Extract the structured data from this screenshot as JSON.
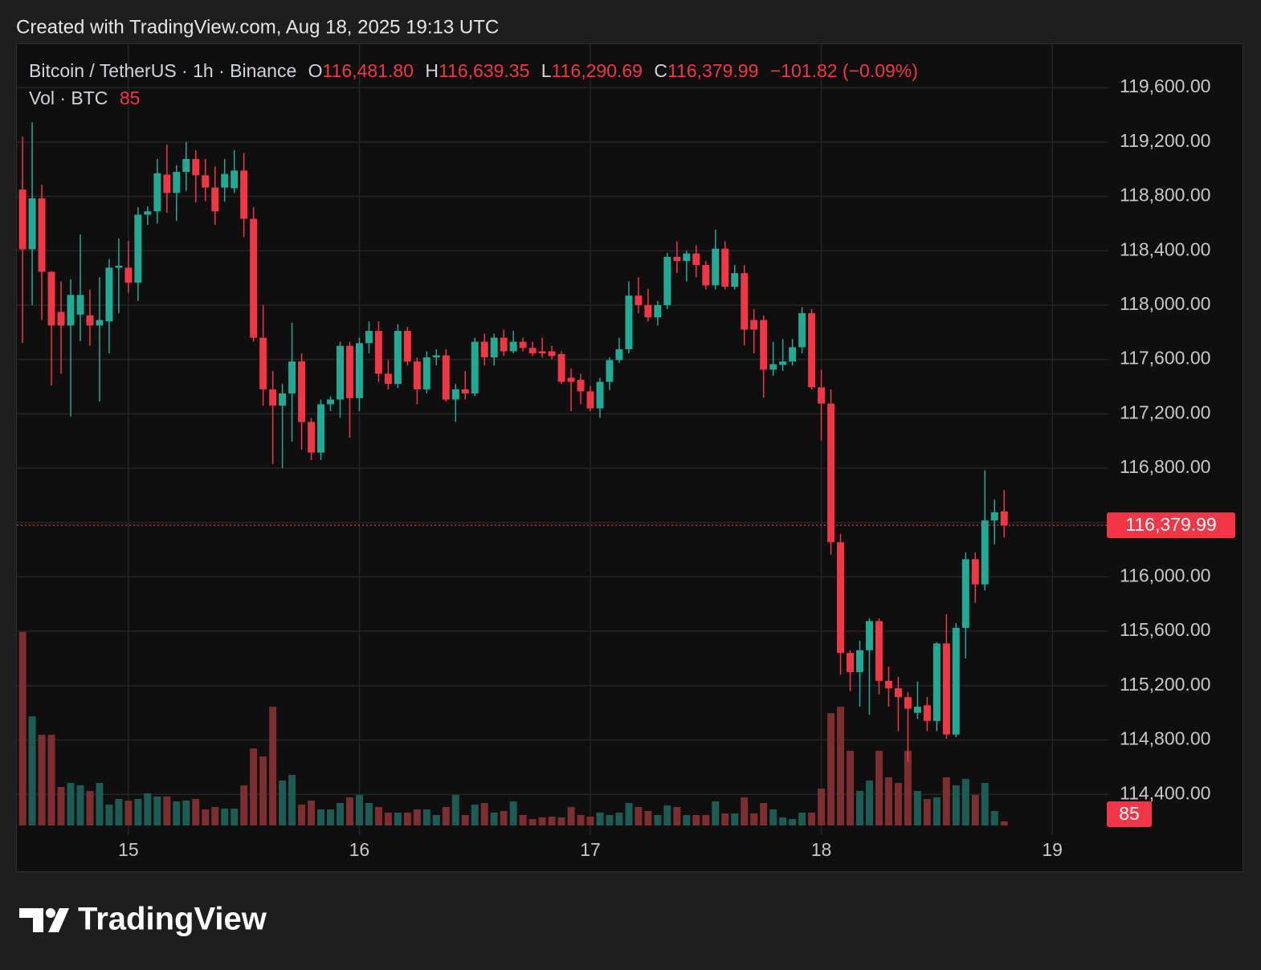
{
  "watermark": "Created with TradingView.com, Aug 18, 2025 19:13 UTC",
  "brand": "TradingView",
  "chart_data": {
    "type": "candlestick",
    "symbol": "Bitcoin / TetherUS · 1h · Binance",
    "ohlc_legend": [
      {
        "key": "O",
        "label": "116,481.80"
      },
      {
        "key": "H",
        "label": "116,639.35"
      },
      {
        "key": "L",
        "label": "116,290.69"
      },
      {
        "key": "C",
        "label": "116,379.99"
      }
    ],
    "change_label": "−101.82 (−0.09%)",
    "volume_label": "Vol · BTC",
    "last_price": {
      "value": 116379.99,
      "label": "116,379.99"
    },
    "up_color": "#22ab94",
    "down_color": "#f23645",
    "volume_up_color": "#1d5c55",
    "volume_down_color": "#7d2e30",
    "grid": true,
    "xlim": [
      14.517,
      19.243
    ],
    "xticks": [
      15,
      16,
      17,
      18,
      19
    ],
    "ylim": [
      114100,
      119920
    ],
    "yticks": [
      {
        "value": 114400,
        "label": "114,400.00"
      },
      {
        "value": 114800,
        "label": "114,800.00"
      },
      {
        "value": 115200,
        "label": "115,200.00"
      },
      {
        "value": 115600,
        "label": "115,600.00"
      },
      {
        "value": 116000,
        "label": "116,000.00"
      },
      {
        "value": 116400,
        "label": "116,400.00"
      },
      {
        "value": 116800,
        "label": "116,800.00"
      },
      {
        "value": 117200,
        "label": "117,200.00"
      },
      {
        "value": 117600,
        "label": "117,600.00"
      },
      {
        "value": 118000,
        "label": "118,000.00"
      },
      {
        "value": 118400,
        "label": "118,400.00"
      },
      {
        "value": 118800,
        "label": "118,800.00"
      },
      {
        "value": 119200,
        "label": "119,200.00"
      },
      {
        "value": 119600,
        "label": "119,600.00"
      }
    ],
    "x": [
      14.5417,
      14.5833,
      14.625,
      14.6667,
      14.7083,
      14.75,
      14.7917,
      14.8333,
      14.875,
      14.9167,
      14.9583,
      15,
      15.0417,
      15.0833,
      15.125,
      15.1667,
      15.2083,
      15.25,
      15.2917,
      15.3333,
      15.375,
      15.4167,
      15.4583,
      15.5,
      15.5417,
      15.5833,
      15.625,
      15.6667,
      15.7083,
      15.75,
      15.7917,
      15.8333,
      15.875,
      15.9167,
      15.9583,
      16,
      16.0417,
      16.0833,
      16.125,
      16.1667,
      16.2083,
      16.25,
      16.2917,
      16.3333,
      16.375,
      16.4167,
      16.4583,
      16.5,
      16.5417,
      16.5833,
      16.625,
      16.6667,
      16.7083,
      16.75,
      16.7917,
      16.8333,
      16.875,
      16.9167,
      16.9583,
      17,
      17.0417,
      17.0833,
      17.125,
      17.1667,
      17.2083,
      17.25,
      17.2917,
      17.3333,
      17.375,
      17.4167,
      17.4583,
      17.5,
      17.5417,
      17.5833,
      17.625,
      17.6667,
      17.7083,
      17.75,
      17.7917,
      17.8333,
      17.875,
      17.9167,
      17.9583,
      18,
      18.0417,
      18.0833,
      18.125,
      18.1667,
      18.2083,
      18.25,
      18.2917,
      18.3333,
      18.375,
      18.4167,
      18.4583,
      18.5,
      18.5417,
      18.5833,
      18.625,
      18.6667,
      18.7083,
      18.75,
      18.7917
    ],
    "open": [
      118850,
      118410,
      118785,
      118245,
      117950,
      117850,
      117930,
      117925,
      117850,
      117880,
      118275,
      118275,
      118165,
      118665,
      118690,
      118960,
      118825,
      118980,
      119075,
      118955,
      118865,
      118865,
      118860,
      118990,
      118635,
      117760,
      117380,
      117260,
      117350,
      117585,
      117140,
      116915,
      117270,
      117305,
      117700,
      117315,
      117720,
      117810,
      117495,
      117420,
      117810,
      117585,
      117380,
      117615,
      117630,
      117305,
      117380,
      117350,
      117730,
      117615,
      117760,
      117660,
      117730,
      117685,
      117660,
      117660,
      117640,
      117465,
      117450,
      117365,
      117240,
      117435,
      117595,
      117675,
      118070,
      118000,
      117910,
      118000,
      118355,
      118325,
      118380,
      118295,
      118145,
      118415,
      118135,
      118235,
      117890,
      117890,
      117525,
      117560,
      117585,
      117690,
      117940,
      117395,
      117275,
      116255,
      115440,
      115300,
      115460,
      115675,
      115235,
      115180,
      115115,
      115000,
      115055,
      114940,
      115510,
      114840,
      115625,
      116130,
      115945,
      116415,
      116481.8
    ],
    "high": [
      119240,
      119345,
      118885,
      118250,
      118175,
      118190,
      118520,
      118115,
      118205,
      118340,
      118490,
      118470,
      118720,
      118725,
      119075,
      119180,
      119030,
      119200,
      119140,
      119075,
      119020,
      119075,
      119140,
      119120,
      118720,
      118000,
      117515,
      117420,
      117870,
      117645,
      117170,
      117305,
      117330,
      117730,
      117730,
      117760,
      117880,
      117880,
      117595,
      117860,
      117840,
      117615,
      117660,
      117675,
      117675,
      117420,
      117515,
      117760,
      117790,
      117790,
      117820,
      117810,
      117760,
      117730,
      117760,
      117700,
      117660,
      117535,
      117495,
      117405,
      117465,
      117615,
      117760,
      118175,
      118205,
      118120,
      118030,
      118385,
      118470,
      118400,
      118440,
      118325,
      118555,
      118470,
      118295,
      118295,
      117970,
      117925,
      117730,
      117750,
      117750,
      117985,
      117970,
      117525,
      117380,
      116315,
      115460,
      115530,
      115695,
      115695,
      115340,
      115265,
      115150,
      115230,
      115115,
      115520,
      115725,
      115660,
      116180,
      116180,
      116785,
      116570,
      116639.35
    ],
    "low": [
      117721,
      118000,
      117890,
      117410,
      117495,
      117180,
      117735,
      117700,
      117290,
      117645,
      117940,
      118090,
      118030,
      118590,
      118600,
      118680,
      118620,
      118840,
      118755,
      118765,
      118590,
      118760,
      118825,
      118500,
      117730,
      117260,
      116830,
      116800,
      116995,
      116935,
      116860,
      116860,
      117220,
      117170,
      117025,
      117220,
      117645,
      117435,
      117380,
      117390,
      117555,
      117270,
      117350,
      117555,
      117290,
      117140,
      117305,
      117330,
      117555,
      117555,
      117625,
      117645,
      117660,
      117625,
      117615,
      117600,
      117420,
      117220,
      117270,
      117220,
      117170,
      117375,
      117575,
      117645,
      117940,
      117880,
      117850,
      117970,
      118235,
      118175,
      118205,
      118115,
      118115,
      118115,
      118115,
      117705,
      117645,
      117320,
      117480,
      117515,
      117555,
      117645,
      117380,
      117005,
      116165,
      115280,
      115160,
      115045,
      114985,
      115135,
      115045,
      114865,
      114640,
      114955,
      114865,
      114865,
      114810,
      114820,
      115400,
      115810,
      115900,
      116240,
      116290.69
    ],
    "close": [
      118410,
      118785,
      118245,
      117850,
      117850,
      118075,
      118075,
      117850,
      117890,
      118275,
      118290,
      118165,
      118665,
      118690,
      118970,
      118825,
      118980,
      119075,
      118955,
      118865,
      118690,
      118965,
      118990,
      118635,
      117760,
      117380,
      117260,
      117350,
      117585,
      117140,
      116915,
      117270,
      117305,
      117700,
      117315,
      117720,
      117810,
      117495,
      117420,
      117810,
      117585,
      117380,
      117615,
      117630,
      117305,
      117380,
      117350,
      117730,
      117615,
      117760,
      117660,
      117730,
      117685,
      117645,
      117645,
      117625,
      117435,
      117435,
      117365,
      117240,
      117435,
      117595,
      117675,
      118070,
      118000,
      117910,
      118000,
      118355,
      118325,
      118380,
      118295,
      118145,
      118415,
      118135,
      118235,
      117820,
      117820,
      117525,
      117565,
      117585,
      117690,
      117940,
      117395,
      117275,
      116255,
      115440,
      115300,
      115460,
      115675,
      115235,
      115180,
      115115,
      115030,
      115045,
      114940,
      115510,
      114840,
      115625,
      116130,
      115945,
      116415,
      116475,
      116379.99
    ],
    "volume": [
      4100,
      2312,
      1921,
      1921,
      816,
      901,
      850,
      731,
      901,
      442,
      561,
      527,
      561,
      680,
      612,
      612,
      510,
      527,
      561,
      340,
      391,
      357,
      357,
      850,
      1632,
      1462,
      2516,
      952,
      1071,
      442,
      527,
      340,
      340,
      476,
      595,
      646,
      476,
      391,
      272,
      272,
      272,
      340,
      340,
      221,
      391,
      646,
      221,
      442,
      476,
      272,
      306,
      510,
      221,
      136,
      170,
      187,
      170,
      391,
      221,
      187,
      272,
      221,
      272,
      476,
      391,
      306,
      221,
      425,
      391,
      221,
      221,
      221,
      510,
      255,
      255,
      595,
      255,
      476,
      340,
      170,
      136,
      272,
      272,
      782,
      2380,
      2516,
      1581,
      731,
      952,
      1581,
      1020,
      901,
      1581,
      731,
      561,
      595,
      1020,
      850,
      986,
      646,
      901,
      306,
      85
    ]
  }
}
